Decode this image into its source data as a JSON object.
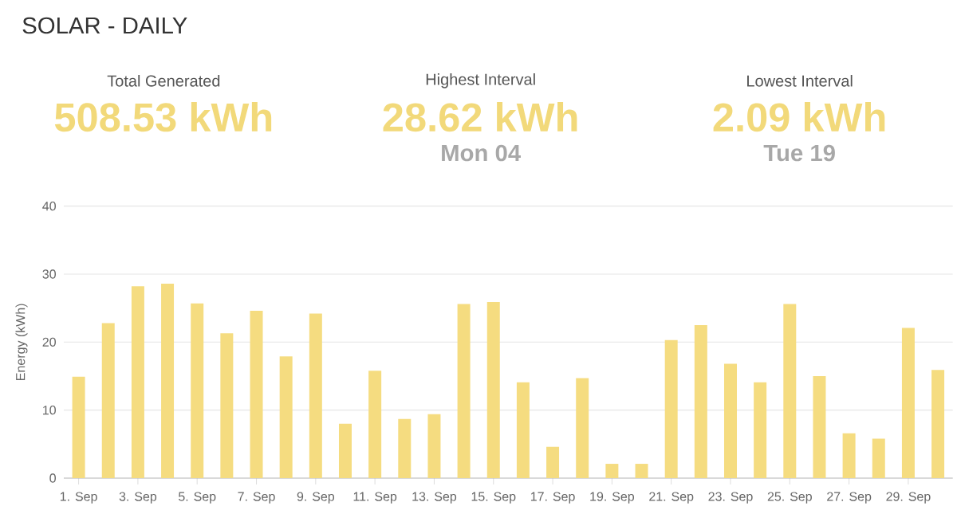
{
  "chart_data": {
    "type": "bar",
    "title": "SOLAR - DAILY",
    "annotations": [
      "Total Generated",
      "508.53 kWh",
      "Highest Interval",
      "28.62 kWh",
      "Mon 04",
      "Lowest Interval",
      "2.09 kWh",
      "Tue 19"
    ],
    "ylabel": "Energy (kWh)",
    "categories": [
      "1. Sep",
      null,
      "3. Sep",
      null,
      "5. Sep",
      null,
      "7. Sep",
      null,
      "9. Sep",
      null,
      "11. Sep",
      null,
      "13. Sep",
      null,
      "15. Sep",
      null,
      "17. Sep",
      null,
      "19. Sep",
      null,
      "21. Sep",
      null,
      "23. Sep",
      null,
      "25. Sep",
      null,
      "27. Sep",
      null,
      "29. Sep",
      null
    ],
    "values": [
      14.9,
      22.8,
      28.2,
      28.6,
      25.7,
      21.3,
      24.6,
      17.9,
      24.2,
      8.0,
      15.8,
      8.7,
      9.4,
      25.6,
      25.9,
      14.1,
      4.6,
      14.7,
      2.1,
      2.1,
      20.3,
      22.5,
      16.8,
      14.1,
      25.6,
      15.0,
      6.6,
      5.8,
      22.1,
      15.9
    ],
    "color": "#f5dc80",
    "ylim": [
      0,
      40
    ],
    "yticks": [
      0,
      10,
      20,
      30,
      40
    ],
    "grid": "y"
  }
}
